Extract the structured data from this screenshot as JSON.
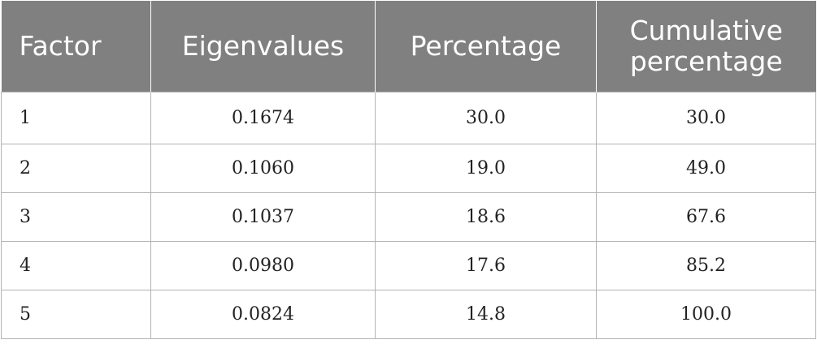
{
  "table": {
    "headers": [
      "Factor",
      "Eigenvalues",
      "Percentage",
      "Cumulative percentage"
    ],
    "rows": [
      [
        "1",
        "0.1674",
        "30.0",
        "30.0"
      ],
      [
        "2",
        "0.1060",
        "19.0",
        "49.0"
      ],
      [
        "3",
        "0.1037",
        "18.6",
        "67.6"
      ],
      [
        "4",
        "0.0980",
        "17.6",
        "85.2"
      ],
      [
        "5",
        "0.0824",
        "14.8",
        "100.0"
      ]
    ],
    "colors": {
      "header_background": "#808080",
      "header_text": "#ffffff",
      "grid_lines": "#b3b3b3",
      "body_text": "#222222"
    }
  }
}
